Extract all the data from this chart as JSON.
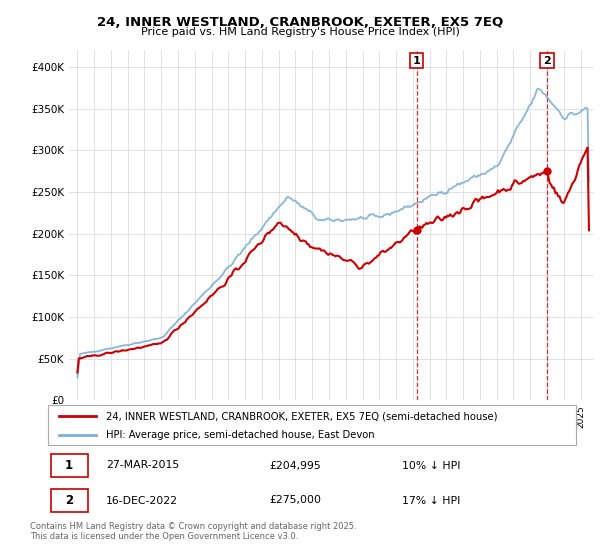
{
  "title": "24, INNER WESTLAND, CRANBROOK, EXETER, EX5 7EQ",
  "subtitle": "Price paid vs. HM Land Registry's House Price Index (HPI)",
  "ylim": [
    0,
    420000
  ],
  "yticks": [
    0,
    50000,
    100000,
    150000,
    200000,
    250000,
    300000,
    350000,
    400000
  ],
  "ytick_labels": [
    "£0",
    "£50K",
    "£100K",
    "£150K",
    "£200K",
    "£250K",
    "£300K",
    "£350K",
    "£400K"
  ],
  "hpi_color": "#7bafd4",
  "price_color": "#cc0000",
  "marker1_year": 2015.2,
  "marker2_year": 2022.96,
  "marker1_price_val": 204995,
  "marker2_price_val": 275000,
  "marker1_label": "27-MAR-2015",
  "marker1_price": "£204,995",
  "marker1_hpi_diff": "10% ↓ HPI",
  "marker2_label": "16-DEC-2022",
  "marker2_price": "£275,000",
  "marker2_hpi_diff": "17% ↓ HPI",
  "legend_line1": "24, INNER WESTLAND, CRANBROOK, EXETER, EX5 7EQ (semi-detached house)",
  "legend_line2": "HPI: Average price, semi-detached house, East Devon",
  "footnote": "Contains HM Land Registry data © Crown copyright and database right 2025.\nThis data is licensed under the Open Government Licence v3.0."
}
